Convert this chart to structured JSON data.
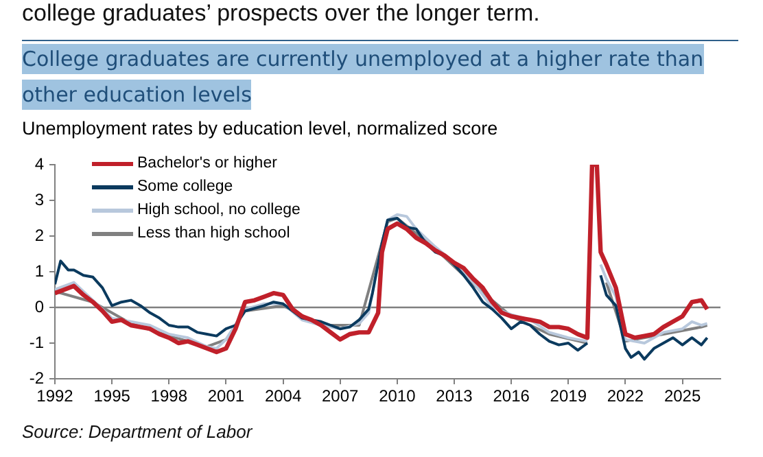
{
  "chart_data": {
    "type": "line",
    "title": "College graduates are currently unemployed at a higher rate than other education levels",
    "subtitle": "Unemployment rates by education level, normalized score",
    "annotations": [
      "college graduates’ prospects over the longer term.",
      "Source: Department of Labor"
    ],
    "xlim": [
      1992,
      2027
    ],
    "xticks": [
      1992,
      1995,
      1998,
      2001,
      2004,
      2007,
      2010,
      2013,
      2016,
      2019,
      2022,
      2025
    ],
    "ylim": [
      -2,
      4
    ],
    "yticks": [
      -2,
      -1,
      0,
      1,
      2,
      3,
      4
    ],
    "grid": false,
    "legend": "top left",
    "marker": "none",
    "line_style": "solid",
    "ref_lines": [
      {
        "axis": "y",
        "value": 0,
        "color": "#808080"
      }
    ],
    "series": [
      {
        "name": "Bachelor's or higher",
        "color": "#c0202a",
        "x": [
          1992,
          1992.5,
          1993,
          1993.5,
          1994,
          1994.5,
          1995,
          1995.5,
          1996,
          1996.5,
          1997,
          1997.5,
          1998,
          1998.5,
          1999,
          1999.5,
          2000,
          2000.5,
          2001,
          2001.5,
          2002,
          2002.5,
          2003,
          2003.5,
          2004,
          2004.5,
          2005,
          2005.5,
          2006,
          2006.5,
          2007,
          2007.5,
          2008,
          2008.5,
          2009,
          2009.2,
          2009.5,
          2010,
          2010.5,
          2011,
          2011.5,
          2012,
          2012.5,
          2013,
          2013.5,
          2014,
          2014.5,
          2015,
          2015.5,
          2016,
          2016.5,
          2017,
          2017.5,
          2018,
          2018.5,
          2019,
          2019.5,
          2020,
          2020.25,
          2020.5,
          2020.7,
          2021,
          2021.5,
          2022,
          2022.5,
          2023,
          2023.5,
          2024,
          2024.5,
          2025,
          2025.5,
          2026,
          2026.3
        ],
        "values": [
          0.4,
          0.5,
          0.6,
          0.35,
          0.15,
          -0.1,
          -0.4,
          -0.35,
          -0.5,
          -0.55,
          -0.6,
          -0.75,
          -0.85,
          -1.0,
          -0.95,
          -1.05,
          -1.15,
          -1.25,
          -1.15,
          -0.6,
          0.15,
          0.2,
          0.3,
          0.4,
          0.35,
          -0.05,
          -0.25,
          -0.35,
          -0.5,
          -0.7,
          -0.9,
          -0.75,
          -0.7,
          -0.7,
          -0.15,
          1.55,
          2.2,
          2.35,
          2.2,
          1.95,
          1.8,
          1.6,
          1.45,
          1.25,
          1.1,
          0.8,
          0.55,
          0.15,
          -0.15,
          -0.25,
          -0.3,
          -0.35,
          -0.4,
          -0.55,
          -0.55,
          -0.6,
          -0.75,
          -0.85,
          4,
          4,
          1.55,
          1.2,
          0.55,
          -0.75,
          -0.85,
          -0.8,
          -0.75,
          -0.55,
          -0.4,
          -0.25,
          0.15,
          0.2,
          -0.05
        ]
      },
      {
        "name": "Some college",
        "color": "#0b3a5e",
        "x": [
          1992,
          1992.3,
          1992.7,
          1993,
          1993.5,
          1994,
          1994.5,
          1995,
          1995.5,
          1996,
          1996.5,
          1997,
          1997.5,
          1998,
          1998.5,
          1999,
          1999.5,
          2000,
          2000.5,
          2001,
          2001.5,
          2002,
          2003,
          2003.5,
          2004,
          2004.5,
          2005,
          2005.5,
          2006,
          2006.5,
          2007,
          2007.5,
          2008,
          2008.5,
          2008.7,
          2009.2,
          2009.5,
          2010,
          2010.5,
          2011,
          2011.5,
          2012,
          2012.5,
          2013,
          2013.5,
          2014,
          2014.5,
          2015,
          2015.5,
          2016,
          2016.5,
          2017,
          2017.5,
          2018,
          2018.5,
          2019,
          2019.5,
          2020,
          2020.25,
          2020.5,
          2020.7,
          2021,
          2021.5,
          2022,
          2022.3,
          2022.7,
          2023,
          2023.5,
          2024,
          2024.5,
          2025,
          2025.5,
          2026,
          2026.3
        ],
        "values": [
          0.65,
          1.3,
          1.05,
          1.05,
          0.9,
          0.85,
          0.55,
          0.05,
          0.15,
          0.2,
          0.05,
          -0.15,
          -0.3,
          -0.5,
          -0.55,
          -0.55,
          -0.7,
          -0.75,
          -0.8,
          -0.6,
          -0.5,
          -0.1,
          0.05,
          0.15,
          0.1,
          -0.1,
          -0.3,
          -0.35,
          -0.4,
          -0.5,
          -0.6,
          -0.55,
          -0.35,
          -0.05,
          0.4,
          1.8,
          2.45,
          2.5,
          2.25,
          2.2,
          1.8,
          1.55,
          1.45,
          1.2,
          0.9,
          0.55,
          0.15,
          -0.05,
          -0.3,
          -0.6,
          -0.4,
          -0.5,
          -0.75,
          -0.95,
          -1.05,
          -1.0,
          -1.2,
          -1.0,
          null,
          null,
          0.9,
          0.35,
          0.05,
          -1.15,
          -1.4,
          -1.25,
          -1.45,
          -1.15,
          -1.0,
          -0.85,
          -1.05,
          -0.85,
          -1.05,
          -0.85
        ]
      },
      {
        "name": "High school, no college",
        "color": "#b8c8dc",
        "x": [
          1992,
          1993,
          1994,
          1995,
          1996,
          1997,
          1998,
          1999,
          2000,
          2000.5,
          2001,
          2002,
          2003,
          2004,
          2005,
          2006,
          2007,
          2008,
          2008.5,
          2009.2,
          2009.5,
          2010,
          2010.5,
          2011,
          2012,
          2013,
          2014,
          2015,
          2016,
          2017,
          2018,
          2019,
          2020,
          2020.25,
          2020.5,
          2020.7,
          2021,
          2021.5,
          2022,
          2023,
          2024,
          2025,
          2025.5,
          2026,
          2026.3
        ],
        "values": [
          0.5,
          0.7,
          0.2,
          -0.3,
          -0.4,
          -0.5,
          -0.75,
          -0.85,
          -1.1,
          -1.15,
          -0.9,
          -0.05,
          0.1,
          0.1,
          -0.35,
          -0.5,
          -0.6,
          -0.45,
          -0.15,
          1.8,
          2.45,
          2.6,
          2.55,
          2.2,
          1.7,
          1.25,
          0.7,
          0.0,
          -0.2,
          -0.35,
          -0.7,
          -0.85,
          -0.95,
          null,
          null,
          1.2,
          0.8,
          0.3,
          -0.9,
          -1.0,
          -0.7,
          -0.6,
          -0.4,
          -0.5,
          -0.45
        ]
      },
      {
        "name": "Less than high school",
        "color": "#808080",
        "x": [
          1992,
          1994,
          1996,
          1998,
          2000,
          2001,
          2002,
          2004,
          2006,
          2008,
          2009.5,
          2010,
          2012,
          2014,
          2016,
          2018,
          2020,
          2020.25,
          2020.5,
          2021,
          2022,
          2024,
          2026,
          2026.3
        ],
        "values": [
          0.45,
          0.15,
          -0.45,
          -0.8,
          -1.1,
          -0.9,
          -0.1,
          0.05,
          -0.5,
          -0.5,
          2.4,
          2.5,
          1.65,
          0.65,
          -0.25,
          -0.75,
          -1.0,
          null,
          null,
          0.7,
          -0.95,
          -0.75,
          -0.55,
          -0.5
        ]
      }
    ]
  }
}
